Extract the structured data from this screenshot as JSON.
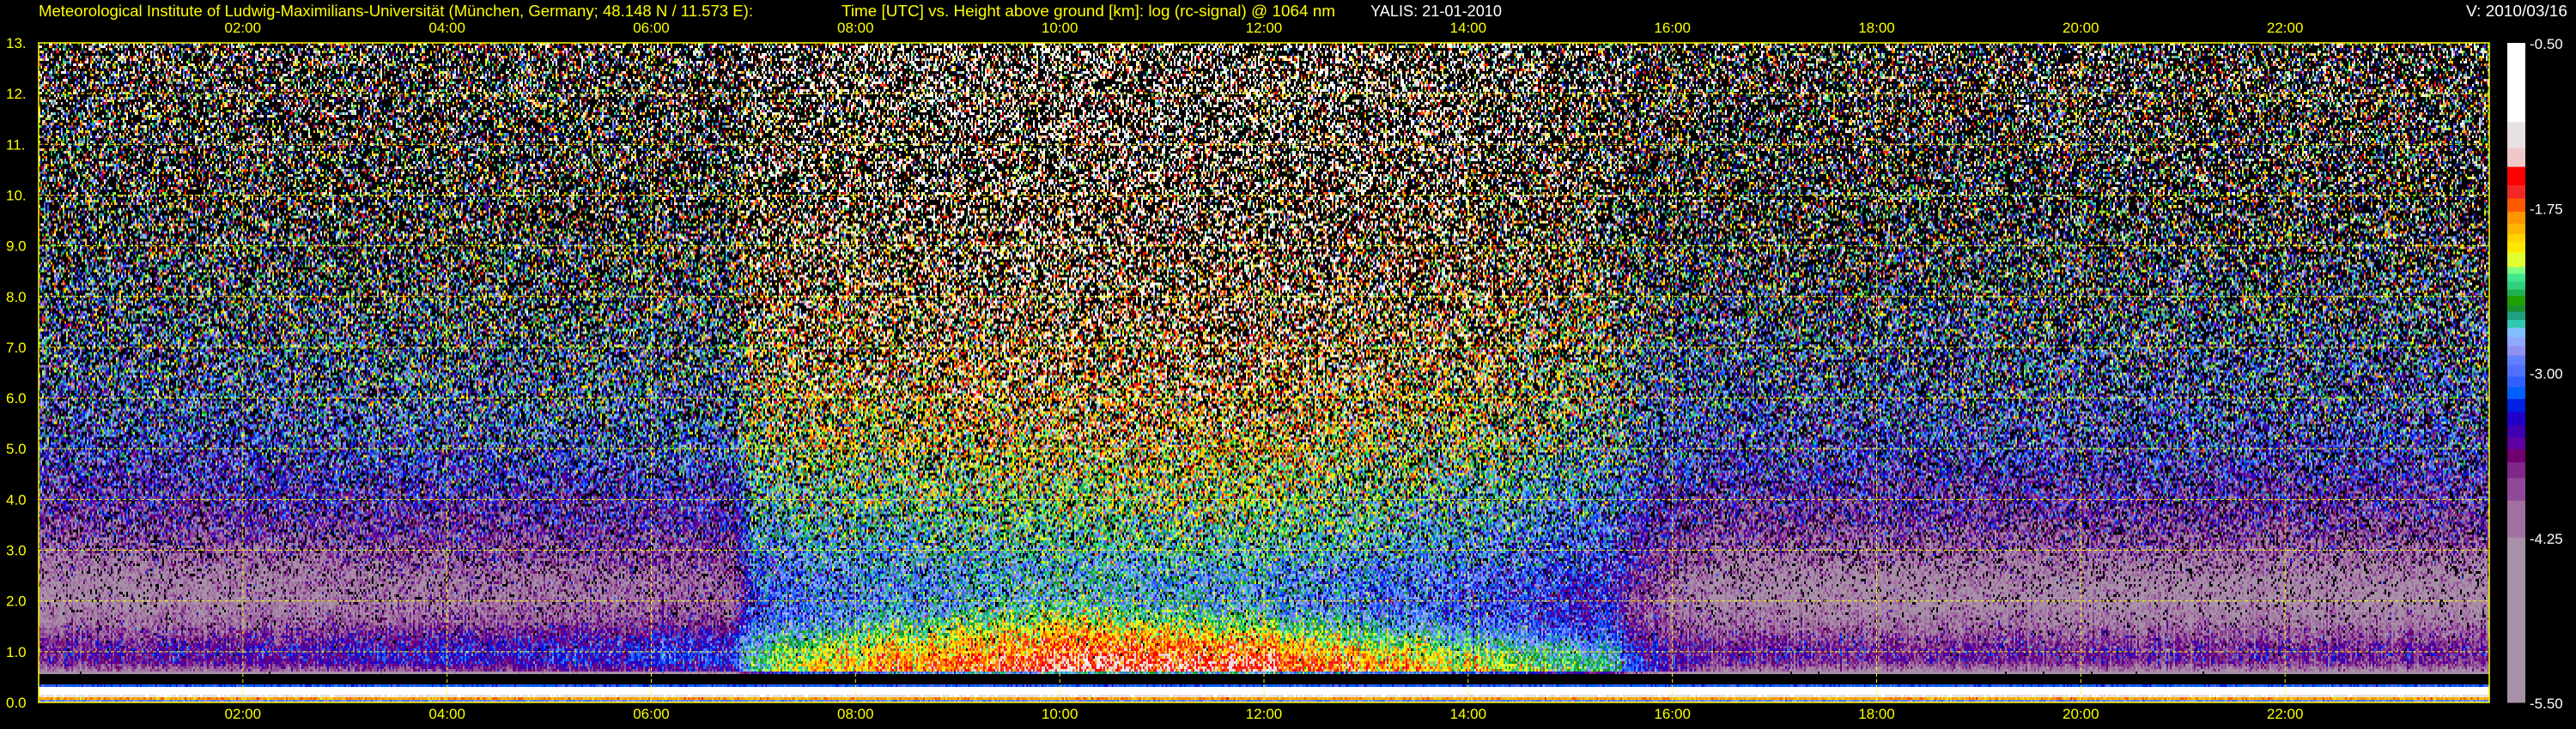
{
  "header": {
    "institute": "Meteorological Institute of Ludwig-Maximilians-Universität (München, Germany; 48.148 N / 11.573 E):",
    "plot_description": "Time [UTC] vs. Height above ground [km]: log (rc-signal) @ 1064 nm",
    "instrument_date": "YALIS: 21-01-2010",
    "version": "V: 2010/03/16"
  },
  "colors": {
    "text": "#ffff00",
    "label_white": "#ffffff",
    "grid": "#ffff00",
    "background": "#000000"
  },
  "chart_data": {
    "type": "heatmap",
    "title": "Time [UTC] vs. Height above ground [km]: log (rc-signal) @ 1064 nm",
    "xlabel": "Time [UTC]",
    "ylabel": "Height above ground [km]",
    "xlim": [
      0,
      24
    ],
    "ylim": [
      0,
      13
    ],
    "grid": true,
    "x_ticks": [
      2,
      4,
      6,
      8,
      10,
      12,
      14,
      16,
      18,
      20,
      22
    ],
    "x_tick_labels": [
      "02:00",
      "04:00",
      "06:00",
      "08:00",
      "10:00",
      "12:00",
      "14:00",
      "16:00",
      "18:00",
      "20:00",
      "22:00"
    ],
    "y_ticks": [
      0,
      1,
      2,
      3,
      4,
      5,
      6,
      7,
      8,
      9,
      10,
      11,
      12,
      13
    ],
    "y_tick_labels": [
      "0.0",
      "1.0",
      "2.0",
      "3.0",
      "4.0",
      "5.0",
      "6.0",
      "7.0",
      "8.0",
      "9.0",
      "10.",
      "11.",
      "12.",
      "13."
    ],
    "colorbar": {
      "range": [
        -5.5,
        -0.5
      ],
      "tick_values": [
        -0.5,
        -1.75,
        -3.0,
        -4.25,
        -5.5
      ],
      "tick_labels": [
        "-0.50",
        "-1.75",
        "-3.00",
        "-4.25",
        "-5.50"
      ],
      "colors": [
        "#ffffff",
        "#e8e0e0",
        "#f0c8c8",
        "#ff0000",
        "#f02828",
        "#ff5a00",
        "#ff9600",
        "#ffb400",
        "#ffd200",
        "#ffe600",
        "#e0ff30",
        "#80ff80",
        "#40e890",
        "#30d080",
        "#20b050",
        "#20a000",
        "#189030",
        "#20a080",
        "#30c8b0",
        "#80c0ff",
        "#90a8ff",
        "#9090f0",
        "#6080ff",
        "#5070ff",
        "#3060ff",
        "#0060ff",
        "#0020e0",
        "#2000c8",
        "#4000b0",
        "#6000a0",
        "#700070",
        "#802888",
        "#904898",
        "#a070a0",
        "#a890a8"
      ],
      "boundaries": [
        -1.1,
        -1.3,
        -1.44,
        -1.58,
        -1.68,
        -1.78,
        -1.87,
        -1.95,
        -2.01,
        -2.09,
        -2.2,
        -2.25,
        -2.31,
        -2.37,
        -2.42,
        -2.49,
        -2.54,
        -2.6,
        -2.66,
        -2.73,
        -2.8,
        -2.87,
        -2.94,
        -3.03,
        -3.11,
        -3.2,
        -3.3,
        -3.4,
        -3.49,
        -3.58,
        -3.68,
        -3.8,
        -3.97,
        -4.25
      ]
    },
    "field": {
      "times_utc_h": [
        0,
        6.8,
        7.0,
        7.6,
        10,
        12,
        14,
        15.4,
        15.8,
        16.5,
        24
      ],
      "heights_km": [
        0.02,
        0.1,
        0.2,
        0.3,
        0.4,
        0.5,
        0.6,
        0.8,
        1.0,
        1.3,
        1.6,
        2.0,
        2.5,
        3,
        4,
        5,
        6,
        8,
        10,
        12,
        13
      ],
      "log_rc_signal": [
        [
          -3.0,
          -1.4,
          -0.6,
          -0.6,
          -9,
          -9,
          -4.3,
          -3.7,
          -3.6,
          -3.9,
          -4.2,
          -4.4,
          -4.3,
          -4.0,
          -3.6,
          -3.2,
          -3.0,
          -2.7,
          -2.4,
          -2.1,
          -2.0
        ],
        [
          -3.0,
          -1.4,
          -0.6,
          -0.6,
          -9,
          -9,
          -3.6,
          -3.2,
          -3.2,
          -3.4,
          -3.8,
          -4.0,
          -4.0,
          -3.8,
          -3.4,
          -3.0,
          -2.8,
          -2.5,
          -2.2,
          -2.0,
          -1.9
        ],
        [
          -3.0,
          -1.4,
          -0.6,
          -0.6,
          -9,
          -9,
          -2.4,
          -2.4,
          -2.5,
          -2.8,
          -3.0,
          -3.1,
          -3.0,
          -2.9,
          -2.6,
          -2.3,
          -2.1,
          -1.8,
          -1.5,
          -1.3,
          -1.2
        ],
        [
          -3.0,
          -1.4,
          -0.6,
          -0.6,
          -9,
          -9,
          -2.0,
          -2.0,
          -2.2,
          -2.5,
          -2.9,
          -3.0,
          -2.9,
          -2.8,
          -2.5,
          -2.2,
          -2.0,
          -1.7,
          -1.4,
          -1.2,
          -1.1
        ],
        [
          -3.0,
          -1.4,
          -0.6,
          -0.6,
          -9,
          -9,
          -1.4,
          -1.5,
          -1.6,
          -1.8,
          -2.1,
          -2.6,
          -2.7,
          -2.6,
          -2.3,
          -2.0,
          -1.8,
          -1.5,
          -1.2,
          -1.0,
          -0.9
        ],
        [
          -3.0,
          -1.4,
          -0.6,
          -0.6,
          -9,
          -9,
          -1.5,
          -1.5,
          -1.7,
          -2.0,
          -2.5,
          -2.8,
          -2.8,
          -2.6,
          -2.3,
          -2.0,
          -1.8,
          -1.5,
          -1.2,
          -1.0,
          -0.9
        ],
        [
          -3.0,
          -1.4,
          -0.6,
          -0.6,
          -9,
          -9,
          -2.0,
          -2.1,
          -2.3,
          -2.7,
          -3.0,
          -3.1,
          -3.0,
          -2.9,
          -2.6,
          -2.3,
          -2.0,
          -1.7,
          -1.4,
          -1.2,
          -1.1
        ],
        [
          -3.0,
          -1.4,
          -0.6,
          -0.6,
          -9,
          -9,
          -2.5,
          -2.6,
          -2.8,
          -3.1,
          -3.3,
          -3.4,
          -3.3,
          -3.1,
          -2.9,
          -2.6,
          -2.4,
          -2.1,
          -1.9,
          -1.7,
          -1.6
        ],
        [
          -3.0,
          -1.4,
          -0.6,
          -0.6,
          -9,
          -9,
          -3.4,
          -3.4,
          -3.5,
          -3.7,
          -3.9,
          -4.0,
          -3.9,
          -3.7,
          -3.4,
          -3.1,
          -2.9,
          -2.6,
          -2.4,
          -2.2,
          -2.1
        ],
        [
          -3.0,
          -1.4,
          -0.6,
          -0.6,
          -9,
          -9,
          -4.3,
          -3.7,
          -3.6,
          -3.9,
          -4.2,
          -4.4,
          -4.3,
          -4.0,
          -3.6,
          -3.2,
          -3.0,
          -2.7,
          -2.4,
          -2.1,
          -2.0
        ],
        [
          -3.0,
          -1.4,
          -0.6,
          -0.6,
          -9,
          -9,
          -4.3,
          -3.7,
          -3.6,
          -3.9,
          -4.2,
          -4.4,
          -4.3,
          -4.0,
          -3.6,
          -3.2,
          -3.0,
          -2.7,
          -2.4,
          -2.1,
          -2.0
        ]
      ]
    }
  }
}
